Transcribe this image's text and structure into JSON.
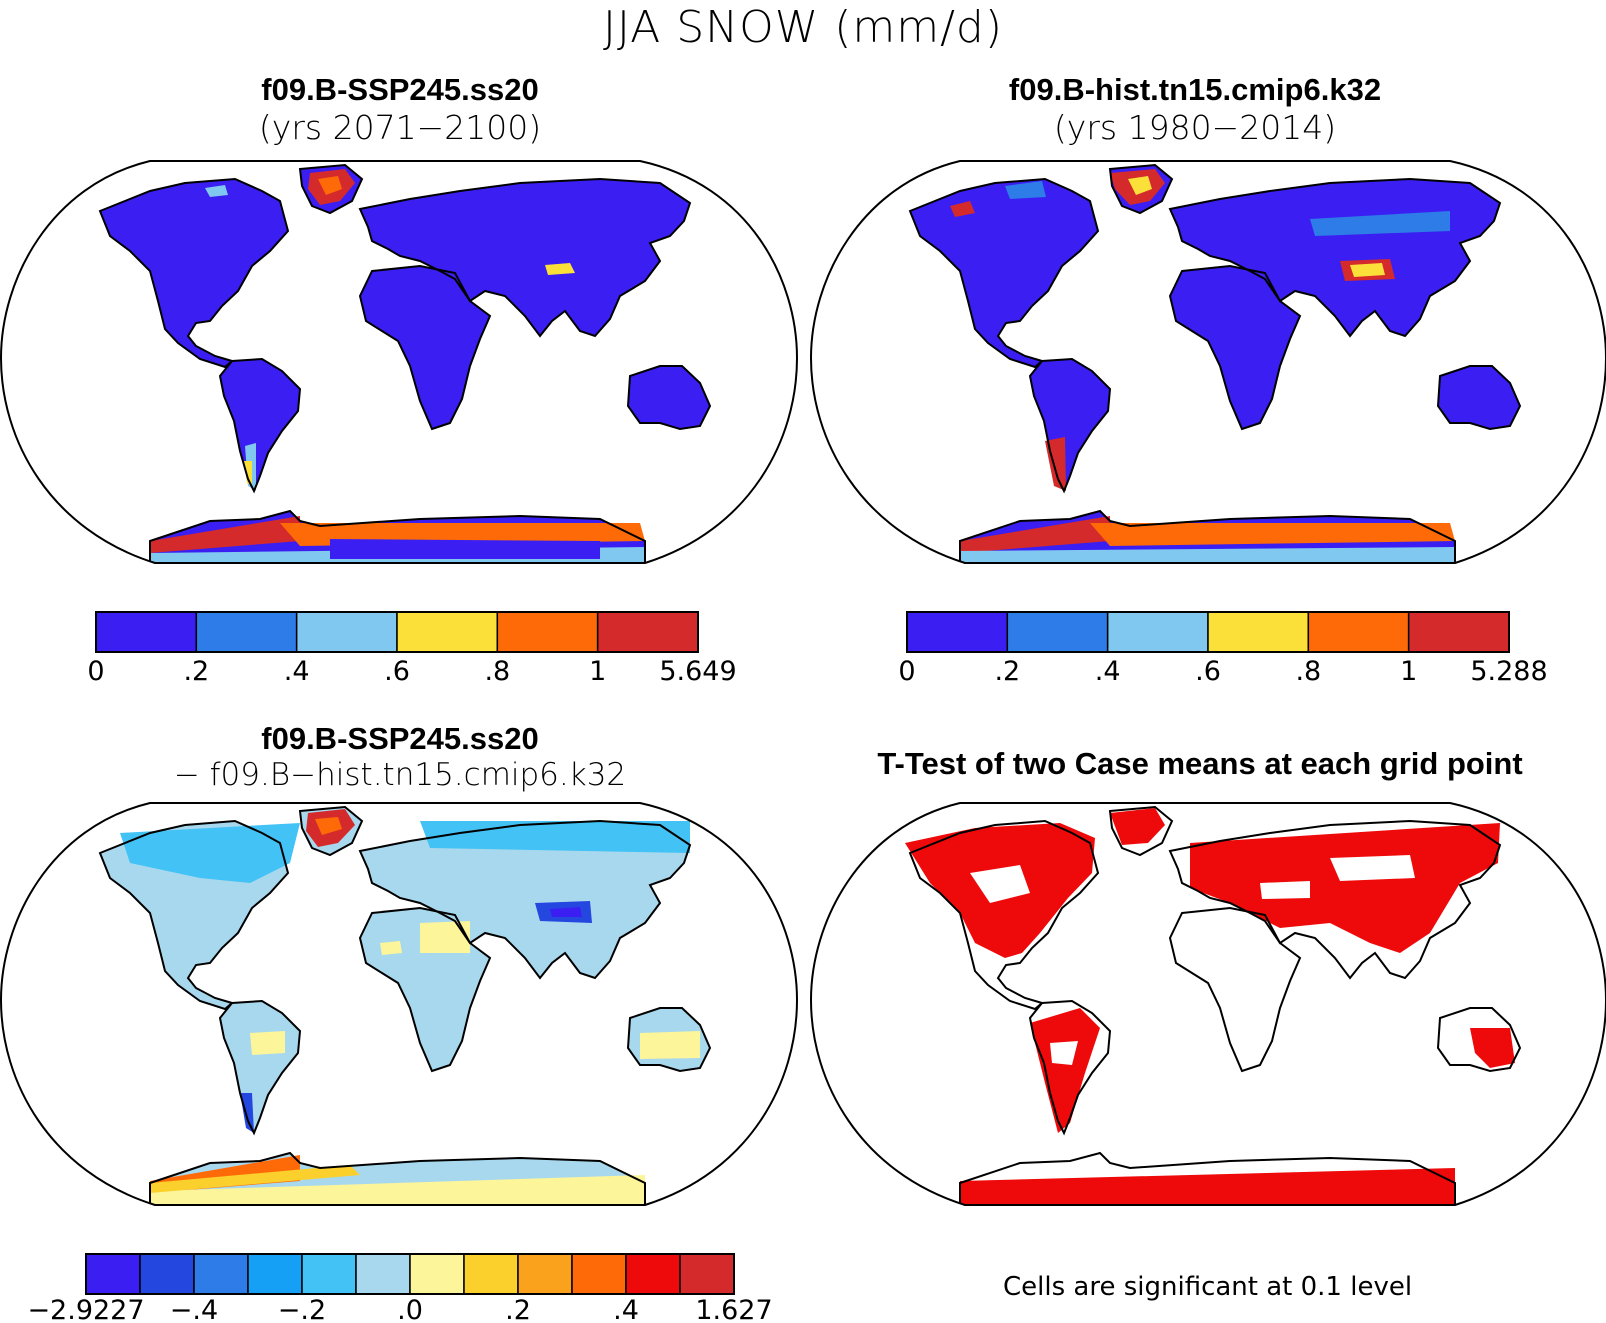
{
  "figure_title": "JJA SNOW (mm/d)",
  "chart_data": [
    {
      "type": "heatmap",
      "panel": "top-left",
      "title": "f09.B-SSP245.ss20",
      "subtitle": "(yrs 2071−2100)",
      "colorbar": {
        "colors": [
          "#3b1ff2",
          "#2d7ce8",
          "#80c8f0",
          "#fbe03a",
          "#ff6a08",
          "#d42a2b"
        ],
        "labels": [
          "0",
          ".2",
          ".4",
          ".6",
          ".8",
          "1",
          "5.649"
        ]
      },
      "land_base_color": "#3b1ff2"
    },
    {
      "type": "heatmap",
      "panel": "top-right",
      "title": "f09.B-hist.tn15.cmip6.k32",
      "subtitle": "(yrs 1980−2014)",
      "colorbar": {
        "colors": [
          "#3b1ff2",
          "#2d7ce8",
          "#80c8f0",
          "#fbe03a",
          "#ff6a08",
          "#d42a2b"
        ],
        "labels": [
          "0",
          ".2",
          ".4",
          ".6",
          ".8",
          "1",
          "5.288"
        ]
      },
      "land_base_color": "#3b1ff2"
    },
    {
      "type": "heatmap",
      "panel": "bottom-left",
      "title": "f09.B-SSP245.ss20",
      "subtitle": "− f09.B−hist.tn15.cmip6.k32",
      "colorbar": {
        "colors": [
          "#3b1ff2",
          "#2447e0",
          "#2d7ce8",
          "#16a0f5",
          "#42c2f5",
          "#a8d8ee",
          "#fdf59a",
          "#fbd02c",
          "#fba21c",
          "#ff6a08",
          "#ee0a0a",
          "#d42a2b"
        ],
        "labels": [
          "−2.9227",
          "−.4",
          "−.2",
          ".0",
          ".2",
          ".4",
          "1.627"
        ]
      },
      "land_base_color": "#a8d8ee"
    },
    {
      "type": "heatmap",
      "panel": "bottom-right",
      "title": "T-Test of two Case means at each grid point",
      "note": "Cells are significant at 0.1 level",
      "significant_color": "#ee0a0a"
    }
  ]
}
